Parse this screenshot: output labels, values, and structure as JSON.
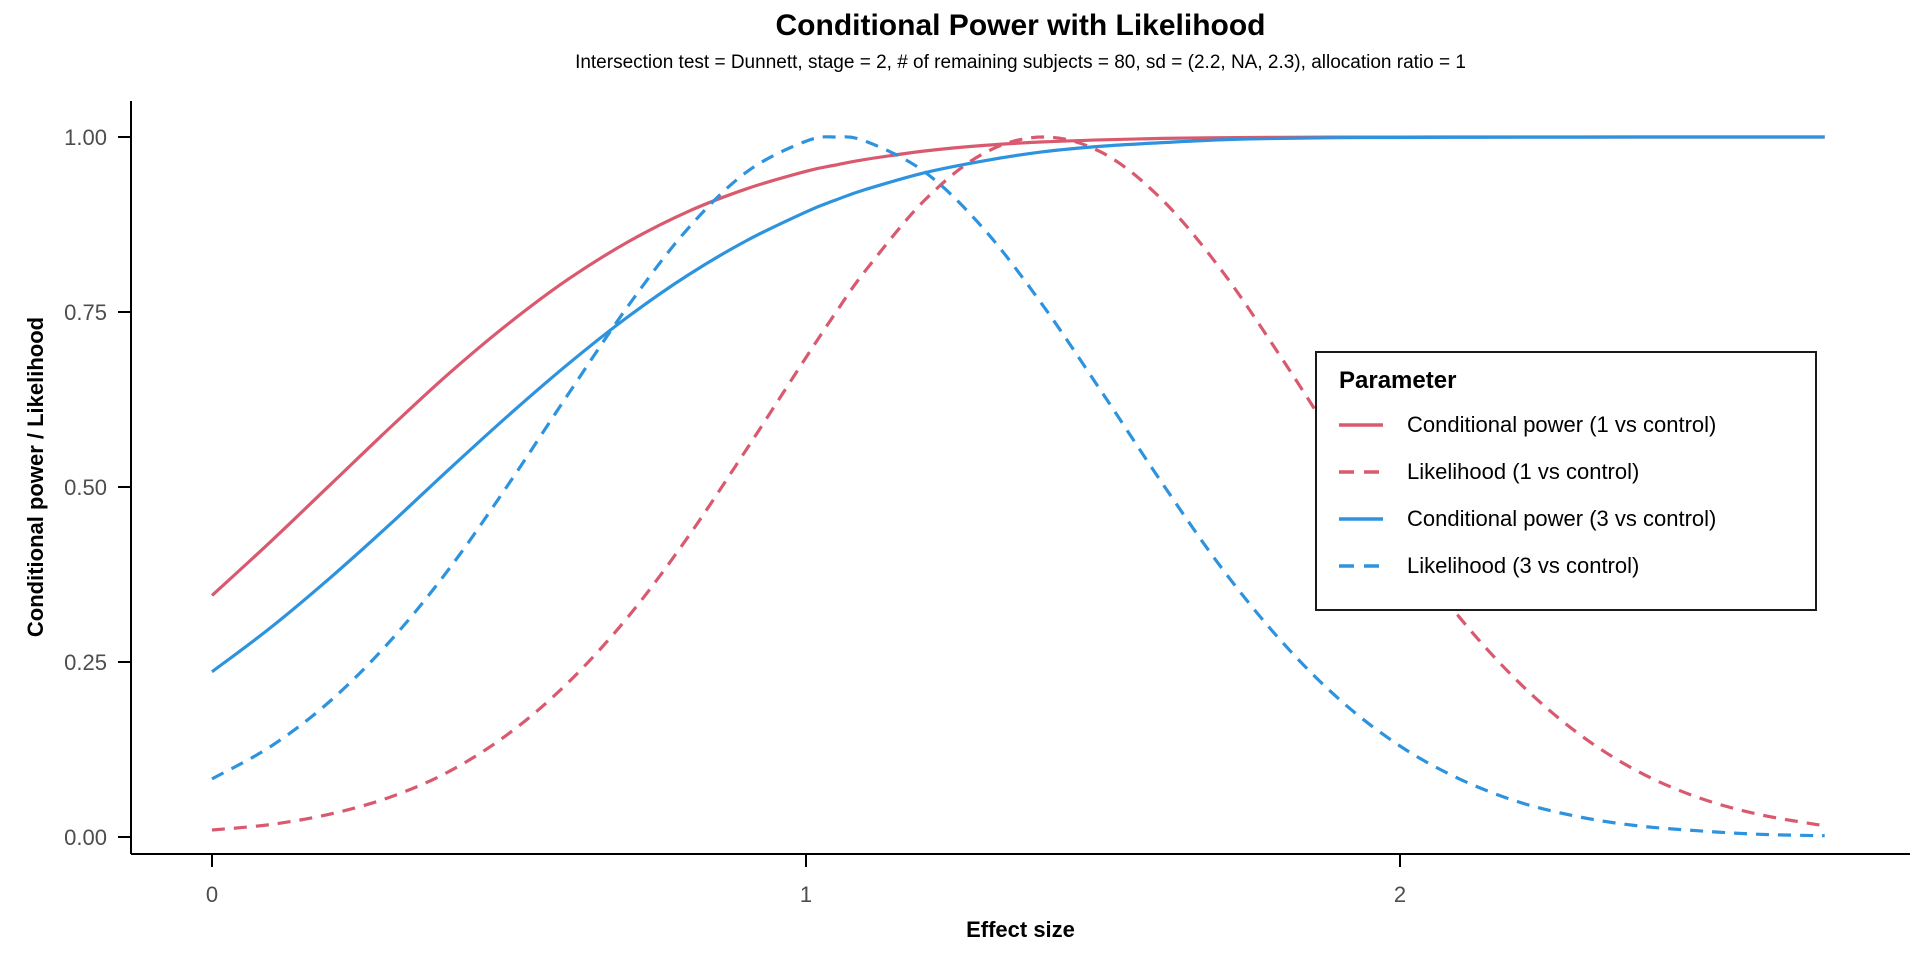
{
  "chart_data": {
    "type": "line",
    "title": "Conditional Power with Likelihood",
    "subtitle": "Intersection test = Dunnett, stage = 2, # of remaining subjects = 80, sd = (2.2, NA, 2.3), allocation ratio = 1",
    "xlabel": "Effect size",
    "ylabel": "Conditional power / Likelihood",
    "legend_title": "Parameter",
    "legend_position": "inside-right",
    "grid": false,
    "xlim": [
      -0.14,
      2.86
    ],
    "ylim": [
      0,
      1.0
    ],
    "x_ticks": [
      0,
      1,
      2
    ],
    "x_tick_labels": [
      "0",
      "1",
      "2"
    ],
    "y_ticks": [
      0,
      0.25,
      0.5,
      0.75,
      1.0
    ],
    "y_tick_labels": [
      "0.00",
      "0.25",
      "0.50",
      "0.75",
      "1.00"
    ],
    "axis_line_color": "#000000",
    "tick_label_color": "#4D4D4D",
    "x": [
      0,
      0.1,
      0.2,
      0.3,
      0.4,
      0.5,
      0.6,
      0.7,
      0.8,
      0.9,
      1.0,
      1.05,
      1.1,
      1.2,
      1.3,
      1.4,
      1.5,
      1.6,
      1.7,
      1.8,
      1.9,
      2.0,
      2.1,
      2.2,
      2.3,
      2.4,
      2.5,
      2.6,
      2.7,
      2.715
    ],
    "series": [
      {
        "name": "Conditional power (1 vs control)",
        "color": "#D95A6F",
        "dash": "solid",
        "values": [
          0.345,
          0.423,
          0.504,
          0.585,
          0.663,
          0.734,
          0.797,
          0.85,
          0.893,
          0.926,
          0.951,
          0.96,
          0.968,
          0.98,
          0.988,
          0.993,
          0.996,
          0.998,
          0.999,
          0.9995,
          0.9998,
          0.9999,
          1,
          1,
          1,
          1,
          1,
          1,
          1,
          1
        ]
      },
      {
        "name": "Likelihood (1 vs control)",
        "color": "#D95A6F",
        "dash": "dashed",
        "values": [
          0.01,
          0.018,
          0.033,
          0.057,
          0.094,
          0.148,
          0.221,
          0.314,
          0.427,
          0.554,
          0.685,
          0.749,
          0.809,
          0.91,
          0.977,
          1,
          0.977,
          0.91,
          0.809,
          0.685,
          0.554,
          0.427,
          0.314,
          0.221,
          0.148,
          0.094,
          0.057,
          0.033,
          0.018,
          0.017
        ]
      },
      {
        "name": "Conditional power (3 vs control)",
        "color": "#2E93DE",
        "dash": "solid",
        "values": [
          0.236,
          0.3,
          0.371,
          0.447,
          0.526,
          0.603,
          0.676,
          0.743,
          0.802,
          0.852,
          0.893,
          0.91,
          0.925,
          0.949,
          0.966,
          0.979,
          0.987,
          0.992,
          0.996,
          0.998,
          0.999,
          0.9993,
          0.9996,
          0.9998,
          0.9999,
          1,
          1,
          1,
          1,
          1
        ]
      },
      {
        "name": "Likelihood (3 vs control)",
        "color": "#2E93DE",
        "dash": "dashed",
        "values": [
          0.083,
          0.13,
          0.195,
          0.28,
          0.384,
          0.505,
          0.633,
          0.758,
          0.868,
          0.95,
          0.994,
          1,
          0.994,
          0.95,
          0.868,
          0.758,
          0.633,
          0.505,
          0.384,
          0.28,
          0.195,
          0.13,
          0.083,
          0.05,
          0.029,
          0.016,
          0.009,
          0.004,
          0.002,
          0.002
        ]
      }
    ]
  }
}
